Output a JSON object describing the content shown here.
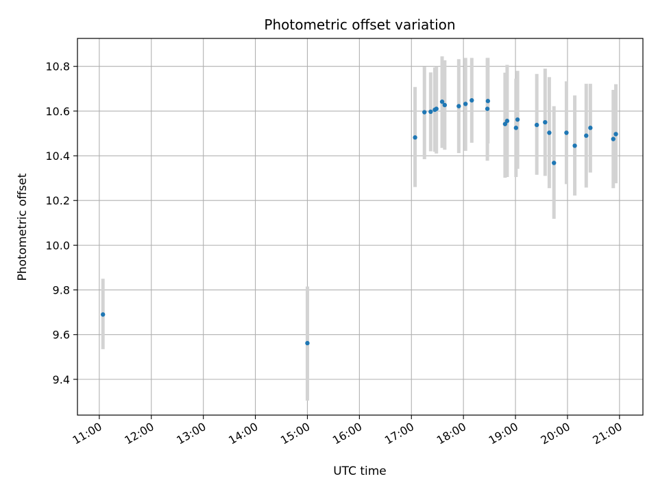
{
  "chart_data": {
    "type": "scatter",
    "title": "Photometric offset variation",
    "xlabel": "UTC time",
    "ylabel": "Photometric offset",
    "x_unit": "hours UTC",
    "xlim": [
      10.58,
      21.45
    ],
    "ylim": [
      9.24,
      10.925
    ],
    "x_ticks": [
      {
        "value": 11,
        "label": "11:00"
      },
      {
        "value": 12,
        "label": "12:00"
      },
      {
        "value": 13,
        "label": "13:00"
      },
      {
        "value": 14,
        "label": "14:00"
      },
      {
        "value": 15,
        "label": "15:00"
      },
      {
        "value": 16,
        "label": "16:00"
      },
      {
        "value": 17,
        "label": "17:00"
      },
      {
        "value": 18,
        "label": "18:00"
      },
      {
        "value": 19,
        "label": "19:00"
      },
      {
        "value": 20,
        "label": "20:00"
      },
      {
        "value": 21,
        "label": "21:00"
      }
    ],
    "y_ticks": [
      {
        "value": 9.4,
        "label": "9.4"
      },
      {
        "value": 9.6,
        "label": "9.6"
      },
      {
        "value": 9.8,
        "label": "9.8"
      },
      {
        "value": 10.0,
        "label": "10.0"
      },
      {
        "value": 10.2,
        "label": "10.2"
      },
      {
        "value": 10.4,
        "label": "10.4"
      },
      {
        "value": 10.6,
        "label": "10.6"
      },
      {
        "value": 10.8,
        "label": "10.8"
      }
    ],
    "grid": true,
    "marker_color": "#1f77b4",
    "errorbar_color": "#d3d3d3",
    "points": [
      {
        "x": 11.07,
        "y": 9.69,
        "lo": 9.535,
        "hi": 9.85
      },
      {
        "x": 15.0,
        "y": 9.562,
        "lo": 9.305,
        "hi": 9.815
      },
      {
        "x": 17.07,
        "y": 10.482,
        "lo": 10.26,
        "hi": 10.708
      },
      {
        "x": 17.25,
        "y": 10.595,
        "lo": 10.385,
        "hi": 10.798
      },
      {
        "x": 17.37,
        "y": 10.597,
        "lo": 10.42,
        "hi": 10.773
      },
      {
        "x": 17.45,
        "y": 10.606,
        "lo": 10.418,
        "hi": 10.795
      },
      {
        "x": 17.48,
        "y": 10.61,
        "lo": 10.41,
        "hi": 10.8
      },
      {
        "x": 17.59,
        "y": 10.642,
        "lo": 10.435,
        "hi": 10.845
      },
      {
        "x": 17.64,
        "y": 10.627,
        "lo": 10.427,
        "hi": 10.827
      },
      {
        "x": 17.91,
        "y": 10.622,
        "lo": 10.412,
        "hi": 10.832
      },
      {
        "x": 18.04,
        "y": 10.632,
        "lo": 10.422,
        "hi": 10.838
      },
      {
        "x": 18.16,
        "y": 10.648,
        "lo": 10.458,
        "hi": 10.838
      },
      {
        "x": 18.46,
        "y": 10.61,
        "lo": 10.378,
        "hi": 10.838
      },
      {
        "x": 18.47,
        "y": 10.645,
        "lo": 10.455,
        "hi": 10.838
      },
      {
        "x": 18.8,
        "y": 10.542,
        "lo": 10.302,
        "hi": 10.772
      },
      {
        "x": 18.84,
        "y": 10.556,
        "lo": 10.305,
        "hi": 10.807
      },
      {
        "x": 19.01,
        "y": 10.525,
        "lo": 10.305,
        "hi": 10.745
      },
      {
        "x": 19.04,
        "y": 10.562,
        "lo": 10.342,
        "hi": 10.78
      },
      {
        "x": 19.41,
        "y": 10.538,
        "lo": 10.315,
        "hi": 10.766
      },
      {
        "x": 19.57,
        "y": 10.55,
        "lo": 10.31,
        "hi": 10.79
      },
      {
        "x": 19.65,
        "y": 10.503,
        "lo": 10.255,
        "hi": 10.752
      },
      {
        "x": 19.74,
        "y": 10.368,
        "lo": 10.118,
        "hi": 10.622
      },
      {
        "x": 19.98,
        "y": 10.503,
        "lo": 10.273,
        "hi": 10.733
      },
      {
        "x": 20.14,
        "y": 10.445,
        "lo": 10.222,
        "hi": 10.67
      },
      {
        "x": 20.36,
        "y": 10.49,
        "lo": 10.258,
        "hi": 10.722
      },
      {
        "x": 20.44,
        "y": 10.525,
        "lo": 10.325,
        "hi": 10.722
      },
      {
        "x": 20.88,
        "y": 10.475,
        "lo": 10.255,
        "hi": 10.695
      },
      {
        "x": 20.93,
        "y": 10.497,
        "lo": 10.277,
        "hi": 10.72
      }
    ]
  }
}
